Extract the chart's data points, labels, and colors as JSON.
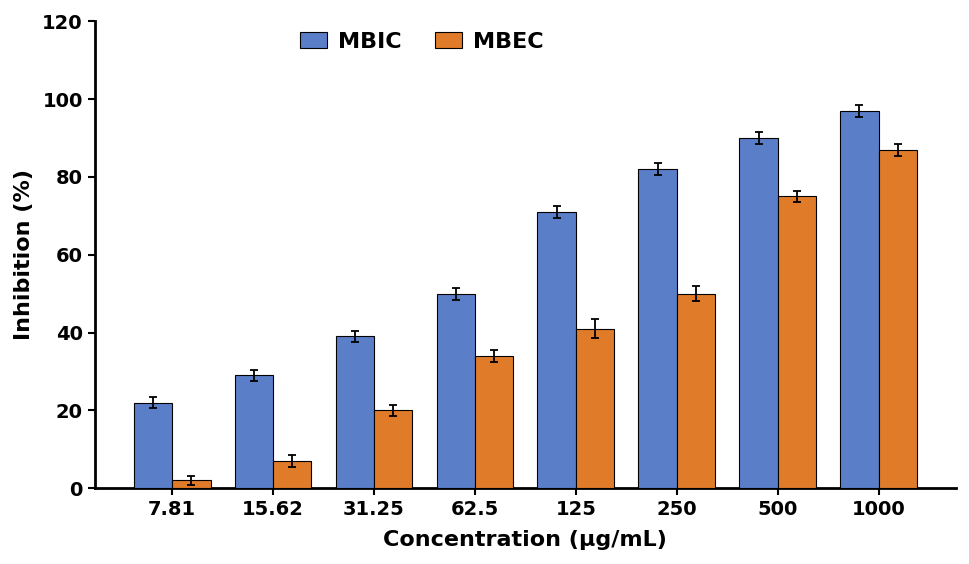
{
  "categories": [
    "7.81",
    "15.62",
    "31.25",
    "62.5",
    "125",
    "250",
    "500",
    "1000"
  ],
  "mbic_values": [
    22,
    29,
    39,
    50,
    71,
    82,
    90,
    97
  ],
  "mbec_values": [
    2,
    7,
    20,
    34,
    41,
    50,
    75,
    87
  ],
  "mbic_errors": [
    1.5,
    1.5,
    1.5,
    1.5,
    1.5,
    1.5,
    1.5,
    1.5
  ],
  "mbec_errors": [
    1.2,
    1.5,
    1.5,
    1.5,
    2.5,
    2.0,
    1.5,
    1.5
  ],
  "mbic_color": "#5B7EC9",
  "mbec_color": "#E07B2A",
  "ylabel": "Inhibition (%)",
  "xlabel": "Concentration (μg/mL)",
  "ylim": [
    0,
    120
  ],
  "yticks": [
    0,
    20,
    40,
    60,
    80,
    100,
    120
  ],
  "bar_width": 0.38,
  "legend_labels": [
    "MBIC",
    "MBEC"
  ],
  "background_color": "#ffffff",
  "edge_color": "#000000",
  "label_fontsize": 16,
  "tick_fontsize": 14,
  "legend_fontsize": 16
}
